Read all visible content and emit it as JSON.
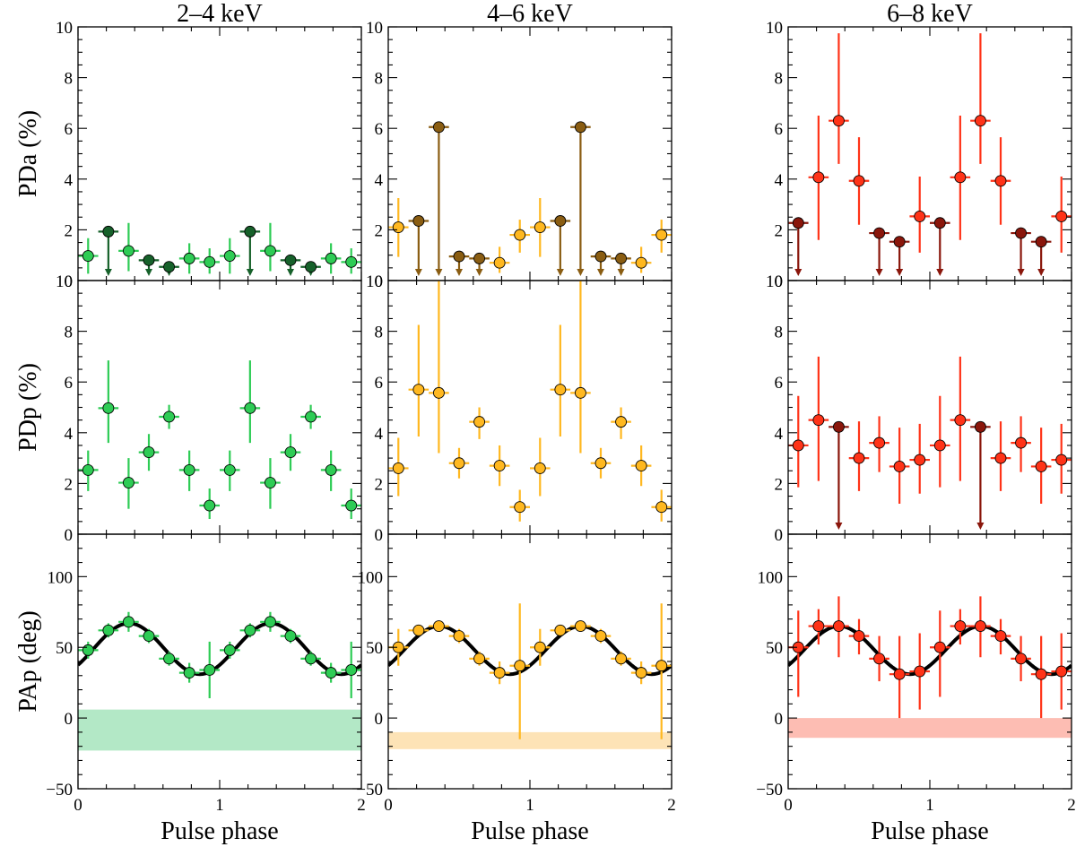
{
  "chart_data": {
    "type": "scatter",
    "x_label": "Pulse phase",
    "x_range": [
      0,
      2
    ],
    "x_ticks": [
      "0",
      "1",
      "2"
    ],
    "columns": [
      {
        "title": "2–4 keV",
        "color": "#2ecc55",
        "ul_color": "#16612a",
        "band_color": "#b3e8c6"
      },
      {
        "title": "4–6 keV",
        "color": "#ffb820",
        "ul_color": "#8a5d12",
        "band_color": "#fde3b6"
      },
      {
        "title": "6–8 keV",
        "color": "#ff3318",
        "ul_color": "#8a160b",
        "band_color": "#fdbdb3"
      }
    ],
    "rows": [
      {
        "key": "pda",
        "ylabel": "PDa (%)",
        "ylim": [
          0,
          10
        ],
        "y_ticks": [
          "0",
          "2",
          "4",
          "6",
          "8",
          "10"
        ]
      },
      {
        "key": "pdp",
        "ylabel": "PDp (%)",
        "ylim": [
          0,
          10
        ],
        "y_ticks": [
          "0",
          "2",
          "4",
          "6",
          "8",
          "10"
        ]
      },
      {
        "key": "pap",
        "ylabel": "PAp (deg)",
        "ylim": [
          -50,
          130
        ],
        "y_ticks": [
          "−50",
          "0",
          "50",
          "100"
        ]
      }
    ],
    "x": [
      0.0714,
      0.2143,
      0.3571,
      0.5,
      0.6429,
      0.7857,
      0.9286,
      1.0714,
      1.2143,
      1.3571,
      1.5,
      1.6429,
      1.7857,
      1.9286
    ],
    "xerr": 0.0714,
    "panels": [
      {
        "row": "pda",
        "col": 0,
        "y": [
          0.97,
          1.93,
          1.17,
          0.8,
          0.54,
          0.87,
          0.73,
          0.97,
          1.93,
          1.17,
          0.8,
          0.54,
          0.87,
          0.73
        ],
        "lo": [
          0.27,
          0.0,
          0.37,
          0.0,
          0.0,
          0.27,
          0.27,
          0.27,
          0.0,
          0.37,
          0.0,
          0.0,
          0.27,
          0.27
        ],
        "hi": [
          1.67,
          0.0,
          2.27,
          0.0,
          0.0,
          1.47,
          1.27,
          1.67,
          0.0,
          2.27,
          0.0,
          0.0,
          1.47,
          1.27
        ],
        "ul": [
          false,
          true,
          false,
          true,
          true,
          false,
          false,
          false,
          true,
          false,
          true,
          true,
          false,
          false
        ]
      },
      {
        "row": "pda",
        "col": 1,
        "y": [
          2.1,
          2.35,
          6.05,
          0.95,
          0.87,
          0.7,
          1.8,
          2.1,
          2.35,
          6.05,
          0.95,
          0.87,
          0.7,
          1.8
        ],
        "lo": [
          0.93,
          0.0,
          0.0,
          0.0,
          0.0,
          0.3,
          1.1,
          0.93,
          0.0,
          0.0,
          0.0,
          0.0,
          0.3,
          1.1
        ],
        "hi": [
          3.25,
          0.0,
          0.0,
          0.0,
          0.0,
          1.33,
          2.4,
          3.25,
          0.0,
          0.0,
          0.0,
          0.0,
          1.33,
          2.4
        ],
        "ul": [
          false,
          true,
          true,
          true,
          true,
          false,
          false,
          false,
          true,
          true,
          true,
          true,
          false,
          false
        ]
      },
      {
        "row": "pda",
        "col": 2,
        "y": [
          2.27,
          4.07,
          6.3,
          3.93,
          1.87,
          1.53,
          2.53,
          2.27,
          4.07,
          6.3,
          3.93,
          1.87,
          1.53,
          2.53
        ],
        "lo": [
          0.0,
          1.6,
          4.6,
          2.2,
          0.0,
          0.0,
          1.1,
          0.0,
          1.6,
          4.6,
          2.2,
          0.0,
          0.0,
          1.1
        ],
        "hi": [
          0.0,
          6.5,
          9.75,
          5.65,
          0.0,
          0.0,
          4.1,
          0.0,
          6.5,
          9.75,
          5.65,
          0.0,
          0.0,
          4.1
        ],
        "ul": [
          true,
          false,
          false,
          false,
          true,
          true,
          false,
          true,
          false,
          false,
          false,
          true,
          true,
          false
        ]
      },
      {
        "row": "pdp",
        "col": 0,
        "y": [
          2.53,
          4.97,
          2.03,
          3.23,
          4.63,
          2.53,
          1.13,
          2.53,
          4.97,
          2.03,
          3.23,
          4.63,
          2.53,
          1.13
        ],
        "lo": [
          1.7,
          3.6,
          1.0,
          2.5,
          4.15,
          1.7,
          0.6,
          1.7,
          3.6,
          1.0,
          2.5,
          4.15,
          1.7,
          0.6
        ],
        "hi": [
          3.3,
          6.85,
          3.0,
          3.95,
          5.1,
          3.3,
          1.8,
          3.3,
          6.85,
          3.0,
          3.95,
          5.1,
          3.3,
          1.8
        ],
        "ul": [
          false,
          false,
          false,
          false,
          false,
          false,
          false,
          false,
          false,
          false,
          false,
          false,
          false,
          false
        ]
      },
      {
        "row": "pdp",
        "col": 1,
        "y": [
          2.6,
          5.7,
          5.57,
          2.8,
          4.43,
          2.7,
          1.07,
          2.6,
          5.7,
          5.57,
          2.8,
          4.43,
          2.7,
          1.07
        ],
        "lo": [
          1.5,
          3.85,
          3.2,
          2.2,
          3.75,
          1.9,
          0.5,
          1.5,
          3.85,
          3.2,
          2.2,
          3.75,
          1.9,
          0.5
        ],
        "hi": [
          3.8,
          8.25,
          10.0,
          3.4,
          5.0,
          3.5,
          1.75,
          3.8,
          8.25,
          10.0,
          3.4,
          5.0,
          3.5,
          1.75
        ],
        "ul": [
          false,
          false,
          false,
          false,
          false,
          false,
          false,
          false,
          false,
          false,
          false,
          false,
          false,
          false
        ]
      },
      {
        "row": "pdp",
        "col": 2,
        "y": [
          3.5,
          4.5,
          4.23,
          3.0,
          3.6,
          2.67,
          2.93,
          3.5,
          4.5,
          4.23,
          3.0,
          3.6,
          2.67,
          2.93
        ],
        "lo": [
          1.85,
          2.1,
          0.0,
          1.7,
          2.45,
          1.2,
          1.6,
          1.85,
          2.1,
          0.0,
          1.7,
          2.45,
          1.2,
          1.6
        ],
        "hi": [
          5.45,
          7.0,
          0.0,
          4.45,
          4.65,
          4.2,
          4.35,
          5.45,
          7.0,
          0.0,
          4.45,
          4.65,
          4.2,
          4.35
        ],
        "ul": [
          false,
          false,
          true,
          false,
          false,
          false,
          false,
          false,
          false,
          true,
          false,
          false,
          false,
          false
        ]
      },
      {
        "row": "pap",
        "col": 0,
        "y": [
          48,
          62,
          68,
          58,
          42,
          32,
          34,
          48,
          62,
          68,
          58,
          42,
          32,
          34
        ],
        "lo": [
          42,
          57,
          61,
          53,
          37,
          25,
          14,
          42,
          57,
          61,
          53,
          37,
          25,
          14
        ],
        "hi": [
          54,
          67,
          75,
          63,
          47,
          39,
          54,
          54,
          67,
          75,
          63,
          47,
          39,
          54
        ],
        "ul": [
          false,
          false,
          false,
          false,
          false,
          false,
          false,
          false,
          false,
          false,
          false,
          false,
          false,
          false
        ],
        "model": {
          "mean": 49,
          "amplitude": 18,
          "peak_phase": 0.36
        },
        "band": [
          -23,
          6
        ]
      },
      {
        "row": "pap",
        "col": 1,
        "y": [
          50,
          62,
          65,
          58,
          42,
          32,
          37,
          50,
          62,
          65,
          58,
          42,
          32,
          37
        ],
        "lo": [
          37,
          58,
          62,
          53,
          37,
          24,
          -15,
          37,
          58,
          62,
          53,
          37,
          24,
          -15
        ],
        "hi": [
          63,
          66,
          68,
          63,
          47,
          40,
          81,
          63,
          66,
          68,
          63,
          47,
          40,
          81
        ],
        "ul": [
          false,
          false,
          false,
          false,
          false,
          false,
          false,
          false,
          false,
          false,
          false,
          false,
          false,
          false
        ],
        "model": {
          "mean": 48,
          "amplitude": 17,
          "peak_phase": 0.36
        },
        "band": [
          -22,
          -10
        ]
      },
      {
        "row": "pap",
        "col": 2,
        "y": [
          50,
          65,
          65,
          58,
          42,
          31,
          33,
          50,
          65,
          65,
          58,
          42,
          31,
          33
        ],
        "lo": [
          15,
          52,
          43,
          45,
          26,
          0,
          6,
          15,
          52,
          43,
          45,
          26,
          0,
          6
        ],
        "hi": [
          76,
          77,
          86,
          70,
          58,
          58,
          60,
          76,
          77,
          86,
          70,
          58,
          58,
          60
        ],
        "ul": [
          false,
          false,
          false,
          false,
          false,
          false,
          false,
          false,
          false,
          false,
          false,
          false,
          false,
          false
        ],
        "model": {
          "mean": 48,
          "amplitude": 17,
          "peak_phase": 0.36
        },
        "band": [
          -14,
          0
        ]
      }
    ]
  }
}
